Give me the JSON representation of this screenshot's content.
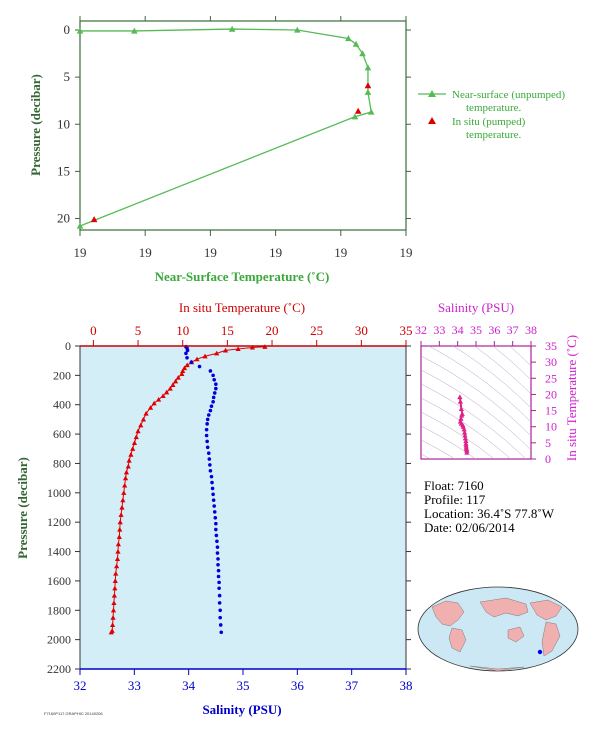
{
  "chart_data": [
    {
      "type": "line",
      "id": "near-surface",
      "xlabel": "Near-Surface Temperature (˚C)",
      "ylabel": "Pressure (decibar)",
      "xticks": [
        "19",
        "19",
        "19",
        "19",
        "19",
        "19"
      ],
      "yticks": [
        "0",
        "5",
        "10",
        "15",
        "20"
      ],
      "ylim": [
        0,
        22
      ],
      "xlim": [
        19.095,
        19.125
      ],
      "grid": false,
      "legend_position": "right",
      "series": [
        {
          "name": "Near-surface (unpumped) temperature.",
          "color": "#55bb55",
          "marker": "triangle",
          "x": [
            19.095,
            19.1,
            19.109,
            19.115,
            19.1197,
            19.1204,
            19.121,
            19.1215,
            19.1215,
            19.1218,
            19.1203,
            19.095
          ],
          "y": [
            0.1,
            0.1,
            -0.1,
            0.0,
            0.9,
            1.5,
            2.5,
            4.0,
            6.6,
            8.7,
            9.2,
            20.8
          ]
        },
        {
          "name": "In situ (pumped) temperature.",
          "color": "#dd0000",
          "marker": "triangle",
          "x": [
            19.1215,
            19.1206,
            19.0963
          ],
          "y": [
            5.9,
            8.6,
            20.1
          ]
        }
      ]
    },
    {
      "type": "line",
      "id": "profile",
      "top_xlabel": "In situ Temperature (˚C)",
      "bottom_xlabel": "Salinity (PSU)",
      "ylabel": "Pressure (decibar)",
      "temp_ticks": [
        "0",
        "5",
        "10",
        "15",
        "20",
        "25",
        "30",
        "35"
      ],
      "sal_ticks": [
        "32",
        "33",
        "34",
        "35",
        "36",
        "37",
        "38"
      ],
      "p_ticks": [
        "0",
        "200",
        "400",
        "600",
        "800",
        "1000",
        "1200",
        "1400",
        "1600",
        "1800",
        "2000",
        "2200"
      ],
      "temp_lim": [
        -1.5,
        35
      ],
      "sal_lim": [
        32,
        38
      ],
      "p_lim": [
        0,
        2200
      ],
      "background": "#d4eef8",
      "series": [
        {
          "name": "In situ Temperature",
          "color": "#e00000",
          "marker": "triangle",
          "temp": [
            19.2,
            17.8,
            16.2,
            14.8,
            13.8,
            12.5,
            11.6,
            11.0,
            10.5,
            10.2,
            10.0,
            9.9,
            9.5,
            9.2,
            8.9,
            8.6,
            8.2,
            7.8,
            7.3,
            6.8,
            6.4,
            5.9,
            5.6,
            5.3,
            5.0,
            4.8,
            4.6,
            4.4,
            4.2,
            4.0,
            3.9,
            3.7,
            3.6,
            3.5,
            3.4,
            3.3,
            3.2,
            3.1,
            3.0,
            2.95,
            2.9,
            2.8,
            2.75,
            2.7,
            2.6,
            2.5,
            2.45,
            2.4,
            2.35,
            2.3,
            2.25,
            2.2,
            2.15,
            2.1,
            2.0
          ],
          "pres": [
            5,
            10,
            20,
            30,
            50,
            70,
            90,
            110,
            130,
            150,
            170,
            190,
            215,
            240,
            265,
            290,
            315,
            340,
            365,
            390,
            420,
            460,
            500,
            540,
            580,
            620,
            660,
            700,
            740,
            780,
            820,
            860,
            900,
            950,
            1000,
            1050,
            1100,
            1150,
            1200,
            1250,
            1300,
            1350,
            1400,
            1450,
            1500,
            1550,
            1600,
            1650,
            1700,
            1750,
            1800,
            1850,
            1900,
            1940,
            1950
          ]
        },
        {
          "name": "Salinity",
          "color": "#0000dd",
          "marker": "dot",
          "sal": [
            33.95,
            33.97,
            33.98,
            33.95,
            33.97,
            34.05,
            34.2,
            34.4,
            34.45,
            34.47,
            34.5,
            34.5,
            34.48,
            34.46,
            34.45,
            34.42,
            34.4,
            34.37,
            34.35,
            34.34,
            34.33,
            34.33,
            34.34,
            34.35,
            34.37,
            34.38,
            34.39,
            34.4,
            34.42,
            34.43,
            34.44,
            34.45,
            34.46,
            34.47,
            34.48,
            34.49,
            34.5,
            34.5,
            34.51,
            34.52,
            34.53,
            34.53,
            34.54,
            34.54,
            34.55,
            34.55,
            34.56,
            34.56,
            34.57,
            34.57,
            34.58,
            34.58,
            34.59,
            34.6
          ],
          "pres": [
            5,
            15,
            30,
            50,
            80,
            110,
            140,
            170,
            200,
            230,
            260,
            290,
            320,
            350,
            380,
            410,
            440,
            470,
            500,
            530,
            570,
            610,
            650,
            690,
            730,
            770,
            810,
            850,
            890,
            930,
            970,
            1010,
            1050,
            1090,
            1130,
            1170,
            1210,
            1250,
            1290,
            1330,
            1370,
            1410,
            1450,
            1490,
            1530,
            1570,
            1610,
            1650,
            1700,
            1750,
            1800,
            1850,
            1900,
            1950
          ]
        }
      ]
    },
    {
      "type": "scatter",
      "id": "ts-diagram",
      "title": "Salinity (PSU)",
      "ylabel": "In situ Temperature (˚C)",
      "sal_ticks": [
        "32",
        "33",
        "34",
        "35",
        "36",
        "37",
        "38"
      ],
      "temp_ticks": [
        "0",
        "5",
        "10",
        "15",
        "20",
        "25",
        "30",
        "35"
      ],
      "sal_lim": [
        32,
        38
      ],
      "temp_lim": [
        0,
        35
      ],
      "color": "#dd2288",
      "sal": [
        34.12,
        34.15,
        34.2,
        34.25,
        34.22,
        34.18,
        34.15,
        34.2,
        34.28,
        34.3,
        34.35,
        34.38,
        34.4,
        34.42,
        34.45,
        34.45,
        34.46,
        34.47,
        34.48,
        34.5,
        34.5
      ],
      "temp": [
        19.2,
        17.8,
        15.5,
        14.0,
        13.5,
        12.5,
        11.6,
        11.0,
        10.5,
        10.0,
        9.2,
        8.2,
        7.3,
        6.4,
        5.6,
        4.8,
        4.2,
        3.6,
        3.1,
        2.6,
        2.0
      ]
    }
  ],
  "float_info": {
    "float": "Float:  7160",
    "profile": "Profile:  117",
    "location": "Location:  36.4˚S  77.8˚W",
    "date": "Date:  02/06/2014"
  },
  "map": {
    "ocean_color": "#cce8f4",
    "land_color": "#f0b0b0",
    "marker_color": "#0000ee"
  },
  "footer": "F7160P117.GRAPHIC 20140206"
}
